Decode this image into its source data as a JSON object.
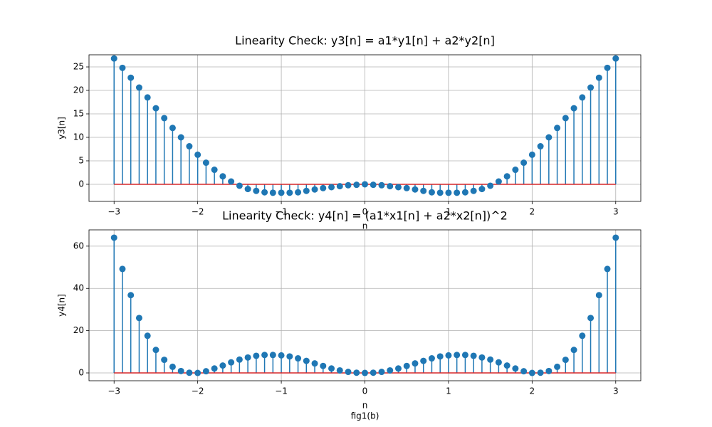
{
  "chart_data": [
    {
      "type": "stem",
      "title": "Linearity Check: y3[n] = a1*y1[n] + a2*y2[n]",
      "xlabel": "n",
      "ylabel": "y3[n]",
      "x": [
        -3,
        -2.9,
        -2.8,
        -2.7,
        -2.6,
        -2.5,
        -2.4,
        -2.3,
        -2.2,
        -2.1,
        -2,
        -1.9,
        -1.8,
        -1.7,
        -1.6,
        -1.5,
        -1.4,
        -1.3,
        -1.2,
        -1.1,
        -1,
        -0.9,
        -0.8,
        -0.7,
        -0.6,
        -0.5,
        -0.4,
        -0.3,
        -0.2,
        -0.1,
        0,
        0.1,
        0.2,
        0.3,
        0.4,
        0.5,
        0.6,
        0.7,
        0.8,
        0.9,
        1,
        1.1,
        1.2,
        1.3,
        1.4,
        1.5,
        1.6,
        1.7,
        1.8,
        1.9,
        2,
        2.1,
        2.2,
        2.3,
        2.4,
        2.5,
        2.6,
        2.7,
        2.8,
        2.9,
        3
      ],
      "values": [
        26.8,
        24.8,
        22.7,
        20.6,
        18.5,
        16.2,
        14.1,
        12.0,
        10.0,
        8.1,
        6.3,
        4.6,
        3.1,
        1.7,
        0.6,
        -0.3,
        -1.0,
        -1.4,
        -1.7,
        -1.8,
        -1.8,
        -1.8,
        -1.7,
        -1.4,
        -1.1,
        -0.8,
        -0.6,
        -0.4,
        -0.2,
        -0.1,
        0,
        -0.1,
        -0.2,
        -0.4,
        -0.6,
        -0.8,
        -1.1,
        -1.4,
        -1.7,
        -1.8,
        -1.8,
        -1.8,
        -1.7,
        -1.4,
        -1.0,
        -0.3,
        0.6,
        1.7,
        3.1,
        4.6,
        6.3,
        8.1,
        10.0,
        12.0,
        14.1,
        16.2,
        18.5,
        20.6,
        22.7,
        24.8,
        26.8
      ],
      "color": "#1f77b4",
      "baseline_color": "#d62728",
      "grid": true,
      "xlim": [
        -3.3,
        3.3
      ],
      "ylim": [
        -3.64,
        27.58
      ],
      "xticks": [
        {
          "value": -3,
          "label": "−3"
        },
        {
          "value": -2,
          "label": "−2"
        },
        {
          "value": -1,
          "label": "−1"
        },
        0,
        1,
        2,
        3
      ],
      "yticks": [
        0,
        5,
        10,
        15,
        20,
        25
      ]
    },
    {
      "type": "stem",
      "title": "Linearity Check: y4[n] = (a1*x1[n] + a2*x2[n])^2",
      "xlabel": "n",
      "ylabel": "y4[n]",
      "caption": "fig1(b)",
      "x": [
        -3,
        -2.9,
        -2.8,
        -2.7,
        -2.6,
        -2.5,
        -2.4,
        -2.3,
        -2.2,
        -2.1,
        -2,
        -1.9,
        -1.8,
        -1.7,
        -1.6,
        -1.5,
        -1.4,
        -1.3,
        -1.2,
        -1.1,
        -1,
        -0.9,
        -0.8,
        -0.7,
        -0.6,
        -0.5,
        -0.4,
        -0.3,
        -0.2,
        -0.1,
        0,
        0.1,
        0.2,
        0.3,
        0.4,
        0.5,
        0.6,
        0.7,
        0.8,
        0.9,
        1,
        1.1,
        1.2,
        1.3,
        1.4,
        1.5,
        1.6,
        1.7,
        1.8,
        1.9,
        2,
        2.1,
        2.2,
        2.3,
        2.4,
        2.5,
        2.6,
        2.7,
        2.8,
        2.9,
        3
      ],
      "values": [
        64,
        49.2,
        36.8,
        26,
        17.6,
        10.9,
        6.2,
        2.9,
        0.9,
        0.1,
        0,
        0.8,
        2.1,
        3.5,
        5.0,
        6.3,
        7.3,
        8.1,
        8.5,
        8.5,
        8.3,
        7.8,
        6.9,
        5.7,
        4.5,
        3.3,
        2.1,
        1.2,
        0.5,
        0.1,
        0,
        0.1,
        0.5,
        1.2,
        2.1,
        3.3,
        4.5,
        5.7,
        6.9,
        7.8,
        8.3,
        8.5,
        8.5,
        8.1,
        7.3,
        6.3,
        5.0,
        3.5,
        2.1,
        0.8,
        0,
        0.1,
        0.9,
        2.9,
        6.2,
        10.9,
        17.6,
        26,
        36.8,
        49.2,
        64
      ],
      "color": "#1f77b4",
      "baseline_color": "#d62728",
      "grid": true,
      "xlim": [
        -3.3,
        3.3
      ],
      "ylim": [
        -3.7,
        67.7
      ],
      "xticks": [
        {
          "value": -3,
          "label": "−3"
        },
        {
          "value": -2,
          "label": "−2"
        },
        {
          "value": -1,
          "label": "−1"
        },
        0,
        1,
        2,
        3
      ],
      "yticks": [
        0,
        20,
        40,
        60
      ]
    }
  ]
}
